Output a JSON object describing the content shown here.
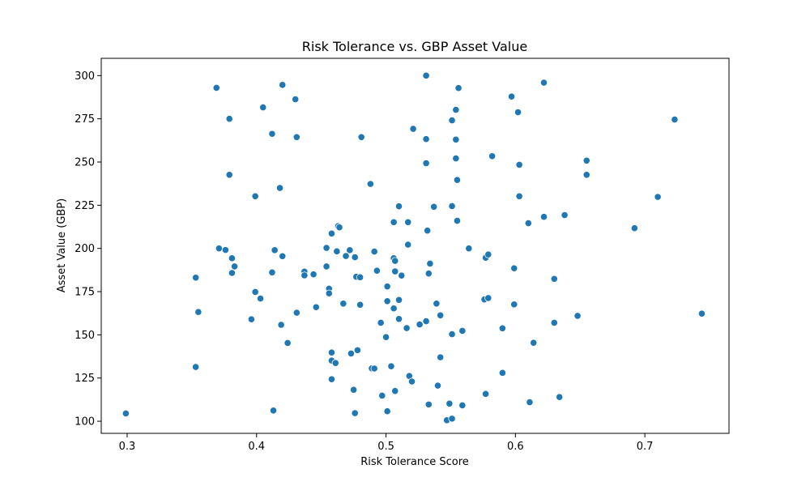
{
  "chart_data": {
    "type": "scatter",
    "title": "Risk Tolerance vs. GBP Asset Value",
    "xlabel": "Risk Tolerance Score",
    "ylabel": "Asset Value (GBP)",
    "xlim": [
      0.28,
      0.765
    ],
    "ylim": [
      93,
      310
    ],
    "xticks": [
      0.3,
      0.4,
      0.5,
      0.6,
      0.7
    ],
    "xtick_labels": [
      "0.3",
      "0.4",
      "0.5",
      "0.6",
      "0.7"
    ],
    "yticks": [
      100,
      125,
      150,
      175,
      200,
      225,
      250,
      275,
      300
    ],
    "ytick_labels": [
      "100",
      "125",
      "150",
      "175",
      "200",
      "225",
      "250",
      "275",
      "300"
    ],
    "grid": false,
    "marker_color": "#1f77b4",
    "points": [
      {
        "x": 0.299,
        "y": 104.5
      },
      {
        "x": 0.353,
        "y": 183.1
      },
      {
        "x": 0.353,
        "y": 131.4
      },
      {
        "x": 0.355,
        "y": 163.2
      },
      {
        "x": 0.369,
        "y": 292.9
      },
      {
        "x": 0.371,
        "y": 200.0
      },
      {
        "x": 0.376,
        "y": 199.1
      },
      {
        "x": 0.379,
        "y": 275.0
      },
      {
        "x": 0.379,
        "y": 242.6
      },
      {
        "x": 0.381,
        "y": 194.3
      },
      {
        "x": 0.381,
        "y": 185.8
      },
      {
        "x": 0.383,
        "y": 189.6
      },
      {
        "x": 0.396,
        "y": 159.0
      },
      {
        "x": 0.399,
        "y": 230.2
      },
      {
        "x": 0.399,
        "y": 174.8
      },
      {
        "x": 0.403,
        "y": 171.0
      },
      {
        "x": 0.405,
        "y": 281.6
      },
      {
        "x": 0.412,
        "y": 266.3
      },
      {
        "x": 0.412,
        "y": 186.1
      },
      {
        "x": 0.413,
        "y": 106.2
      },
      {
        "x": 0.414,
        "y": 199.0
      },
      {
        "x": 0.418,
        "y": 235.0
      },
      {
        "x": 0.419,
        "y": 155.8
      },
      {
        "x": 0.42,
        "y": 294.6
      },
      {
        "x": 0.42,
        "y": 195.5
      },
      {
        "x": 0.424,
        "y": 145.3
      },
      {
        "x": 0.43,
        "y": 286.3
      },
      {
        "x": 0.431,
        "y": 264.4
      },
      {
        "x": 0.431,
        "y": 162.8
      },
      {
        "x": 0.437,
        "y": 186.6
      },
      {
        "x": 0.437,
        "y": 184.4
      },
      {
        "x": 0.444,
        "y": 185.0
      },
      {
        "x": 0.446,
        "y": 166.0
      },
      {
        "x": 0.454,
        "y": 200.3
      },
      {
        "x": 0.454,
        "y": 189.6
      },
      {
        "x": 0.456,
        "y": 176.7
      },
      {
        "x": 0.456,
        "y": 174.0
      },
      {
        "x": 0.458,
        "y": 208.6
      },
      {
        "x": 0.458,
        "y": 139.8
      },
      {
        "x": 0.458,
        "y": 124.3
      },
      {
        "x": 0.458,
        "y": 135.1
      },
      {
        "x": 0.461,
        "y": 133.7
      },
      {
        "x": 0.462,
        "y": 198.3
      },
      {
        "x": 0.463,
        "y": 212.9
      },
      {
        "x": 0.464,
        "y": 212.2
      },
      {
        "x": 0.467,
        "y": 168.1
      },
      {
        "x": 0.469,
        "y": 195.6
      },
      {
        "x": 0.472,
        "y": 199.0
      },
      {
        "x": 0.473,
        "y": 139.2
      },
      {
        "x": 0.475,
        "y": 118.2
      },
      {
        "x": 0.476,
        "y": 104.7
      },
      {
        "x": 0.476,
        "y": 194.9
      },
      {
        "x": 0.477,
        "y": 183.6
      },
      {
        "x": 0.478,
        "y": 141.1
      },
      {
        "x": 0.48,
        "y": 183.3
      },
      {
        "x": 0.48,
        "y": 167.4
      },
      {
        "x": 0.481,
        "y": 264.4
      },
      {
        "x": 0.488,
        "y": 237.3
      },
      {
        "x": 0.489,
        "y": 130.6
      },
      {
        "x": 0.491,
        "y": 130.5
      },
      {
        "x": 0.491,
        "y": 198.2
      },
      {
        "x": 0.493,
        "y": 187.1
      },
      {
        "x": 0.496,
        "y": 157.0
      },
      {
        "x": 0.497,
        "y": 114.8
      },
      {
        "x": 0.5,
        "y": 148.7
      },
      {
        "x": 0.501,
        "y": 178.0
      },
      {
        "x": 0.501,
        "y": 169.5
      },
      {
        "x": 0.501,
        "y": 105.8
      },
      {
        "x": 0.504,
        "y": 131.8
      },
      {
        "x": 0.506,
        "y": 215.2
      },
      {
        "x": 0.506,
        "y": 194.3
      },
      {
        "x": 0.507,
        "y": 192.8
      },
      {
        "x": 0.507,
        "y": 186.7
      },
      {
        "x": 0.506,
        "y": 165.3
      },
      {
        "x": 0.507,
        "y": 117.5
      },
      {
        "x": 0.51,
        "y": 224.4
      },
      {
        "x": 0.51,
        "y": 170.2
      },
      {
        "x": 0.51,
        "y": 159.2
      },
      {
        "x": 0.512,
        "y": 184.3
      },
      {
        "x": 0.516,
        "y": 153.9
      },
      {
        "x": 0.517,
        "y": 215.2
      },
      {
        "x": 0.517,
        "y": 202.2
      },
      {
        "x": 0.518,
        "y": 126.2
      },
      {
        "x": 0.52,
        "y": 123.0
      },
      {
        "x": 0.521,
        "y": 269.2
      },
      {
        "x": 0.526,
        "y": 156.0
      },
      {
        "x": 0.531,
        "y": 300.0
      },
      {
        "x": 0.531,
        "y": 263.3
      },
      {
        "x": 0.531,
        "y": 249.3
      },
      {
        "x": 0.531,
        "y": 157.9
      },
      {
        "x": 0.532,
        "y": 210.3
      },
      {
        "x": 0.533,
        "y": 185.5
      },
      {
        "x": 0.533,
        "y": 109.7
      },
      {
        "x": 0.534,
        "y": 191.2
      },
      {
        "x": 0.537,
        "y": 224.1
      },
      {
        "x": 0.539,
        "y": 168.1
      },
      {
        "x": 0.54,
        "y": 120.6
      },
      {
        "x": 0.542,
        "y": 161.3
      },
      {
        "x": 0.542,
        "y": 137.0
      },
      {
        "x": 0.547,
        "y": 100.6
      },
      {
        "x": 0.549,
        "y": 110.2
      },
      {
        "x": 0.551,
        "y": 274.1
      },
      {
        "x": 0.551,
        "y": 224.5
      },
      {
        "x": 0.551,
        "y": 150.4
      },
      {
        "x": 0.551,
        "y": 101.5
      },
      {
        "x": 0.554,
        "y": 280.2
      },
      {
        "x": 0.554,
        "y": 263.0
      },
      {
        "x": 0.554,
        "y": 252.1
      },
      {
        "x": 0.555,
        "y": 239.6
      },
      {
        "x": 0.555,
        "y": 216.0
      },
      {
        "x": 0.556,
        "y": 292.8
      },
      {
        "x": 0.559,
        "y": 152.3
      },
      {
        "x": 0.559,
        "y": 109.2
      },
      {
        "x": 0.564,
        "y": 200.0
      },
      {
        "x": 0.576,
        "y": 170.5
      },
      {
        "x": 0.577,
        "y": 194.6
      },
      {
        "x": 0.577,
        "y": 115.8
      },
      {
        "x": 0.579,
        "y": 196.5
      },
      {
        "x": 0.579,
        "y": 171.3
      },
      {
        "x": 0.582,
        "y": 253.4
      },
      {
        "x": 0.59,
        "y": 153.8
      },
      {
        "x": 0.59,
        "y": 128.0
      },
      {
        "x": 0.597,
        "y": 287.9
      },
      {
        "x": 0.599,
        "y": 188.5
      },
      {
        "x": 0.599,
        "y": 167.6
      },
      {
        "x": 0.602,
        "y": 278.8
      },
      {
        "x": 0.603,
        "y": 248.4
      },
      {
        "x": 0.603,
        "y": 230.2
      },
      {
        "x": 0.61,
        "y": 214.6
      },
      {
        "x": 0.611,
        "y": 111.0
      },
      {
        "x": 0.614,
        "y": 145.4
      },
      {
        "x": 0.622,
        "y": 295.9
      },
      {
        "x": 0.622,
        "y": 218.3
      },
      {
        "x": 0.63,
        "y": 182.4
      },
      {
        "x": 0.63,
        "y": 157.0
      },
      {
        "x": 0.634,
        "y": 114.0
      },
      {
        "x": 0.638,
        "y": 219.3
      },
      {
        "x": 0.648,
        "y": 161.0
      },
      {
        "x": 0.655,
        "y": 250.8
      },
      {
        "x": 0.655,
        "y": 242.6
      },
      {
        "x": 0.692,
        "y": 211.7
      },
      {
        "x": 0.71,
        "y": 229.8
      },
      {
        "x": 0.723,
        "y": 274.6
      },
      {
        "x": 0.744,
        "y": 162.3
      }
    ]
  }
}
